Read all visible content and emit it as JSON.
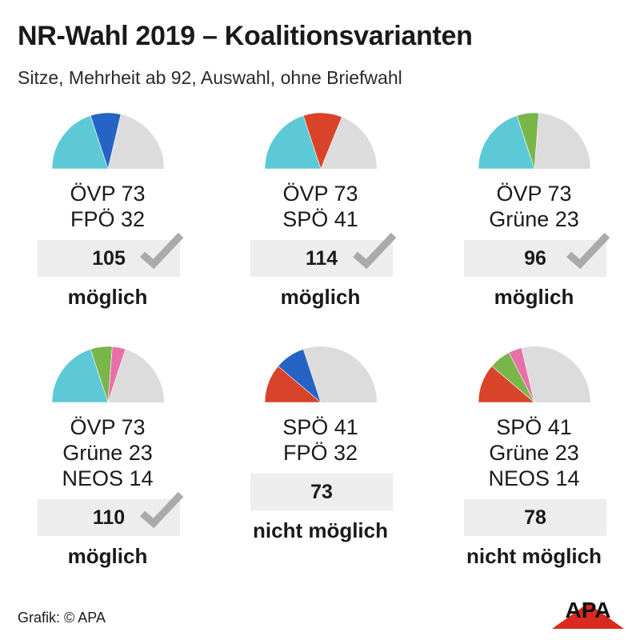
{
  "title": "NR-Wahl 2019 – Koalitionsvarianten",
  "subtitle": "Sitze, Mehrheit ab 92, Auswahl, ohne Briefwahl",
  "source": "Grafik: © APA",
  "logo_text": "APA",
  "colors": {
    "ÖVP": "#5ec9d6",
    "FPÖ": "#2563c4",
    "SPÖ": "#d9432a",
    "Grüne": "#7ab54a",
    "NEOS": "#e870a8",
    "rest": "#dcdcdc",
    "box": "#ededed",
    "check": "#aaaaaa",
    "logo_red": "#d82a1e"
  },
  "chart_data": {
    "type": "pie",
    "total_seats": 183,
    "majority": 92,
    "variants": [
      {
        "parties": [
          {
            "name": "ÖVP",
            "seats": 73,
            "label": "ÖVP 73"
          },
          {
            "name": "FPÖ",
            "seats": 32,
            "label": "FPÖ 32"
          }
        ],
        "total": 105,
        "total_label": "105",
        "possible": true,
        "verdict": "möglich"
      },
      {
        "parties": [
          {
            "name": "ÖVP",
            "seats": 73,
            "label": "ÖVP 73"
          },
          {
            "name": "SPÖ",
            "seats": 41,
            "label": "SPÖ 41"
          }
        ],
        "total": 114,
        "total_label": "114",
        "possible": true,
        "verdict": "möglich"
      },
      {
        "parties": [
          {
            "name": "ÖVP",
            "seats": 73,
            "label": "ÖVP 73"
          },
          {
            "name": "Grüne",
            "seats": 23,
            "label": "Grüne 23"
          }
        ],
        "total": 96,
        "total_label": "96",
        "possible": true,
        "verdict": "möglich"
      },
      {
        "parties": [
          {
            "name": "ÖVP",
            "seats": 73,
            "label": "ÖVP 73"
          },
          {
            "name": "Grüne",
            "seats": 23,
            "label": "Grüne 23"
          },
          {
            "name": "NEOS",
            "seats": 14,
            "label": "NEOS 14"
          }
        ],
        "total": 110,
        "total_label": "110",
        "possible": true,
        "verdict": "möglich"
      },
      {
        "parties": [
          {
            "name": "SPÖ",
            "seats": 41,
            "label": "SPÖ 41"
          },
          {
            "name": "FPÖ",
            "seats": 32,
            "label": "FPÖ 32"
          }
        ],
        "total": 73,
        "total_label": "73",
        "possible": false,
        "verdict": "nicht möglich"
      },
      {
        "parties": [
          {
            "name": "SPÖ",
            "seats": 41,
            "label": "SPÖ 41"
          },
          {
            "name": "Grüne",
            "seats": 23,
            "label": "Grüne 23"
          },
          {
            "name": "NEOS",
            "seats": 14,
            "label": "NEOS 14"
          }
        ],
        "total": 78,
        "total_label": "78",
        "possible": false,
        "verdict": "nicht möglich"
      }
    ]
  }
}
